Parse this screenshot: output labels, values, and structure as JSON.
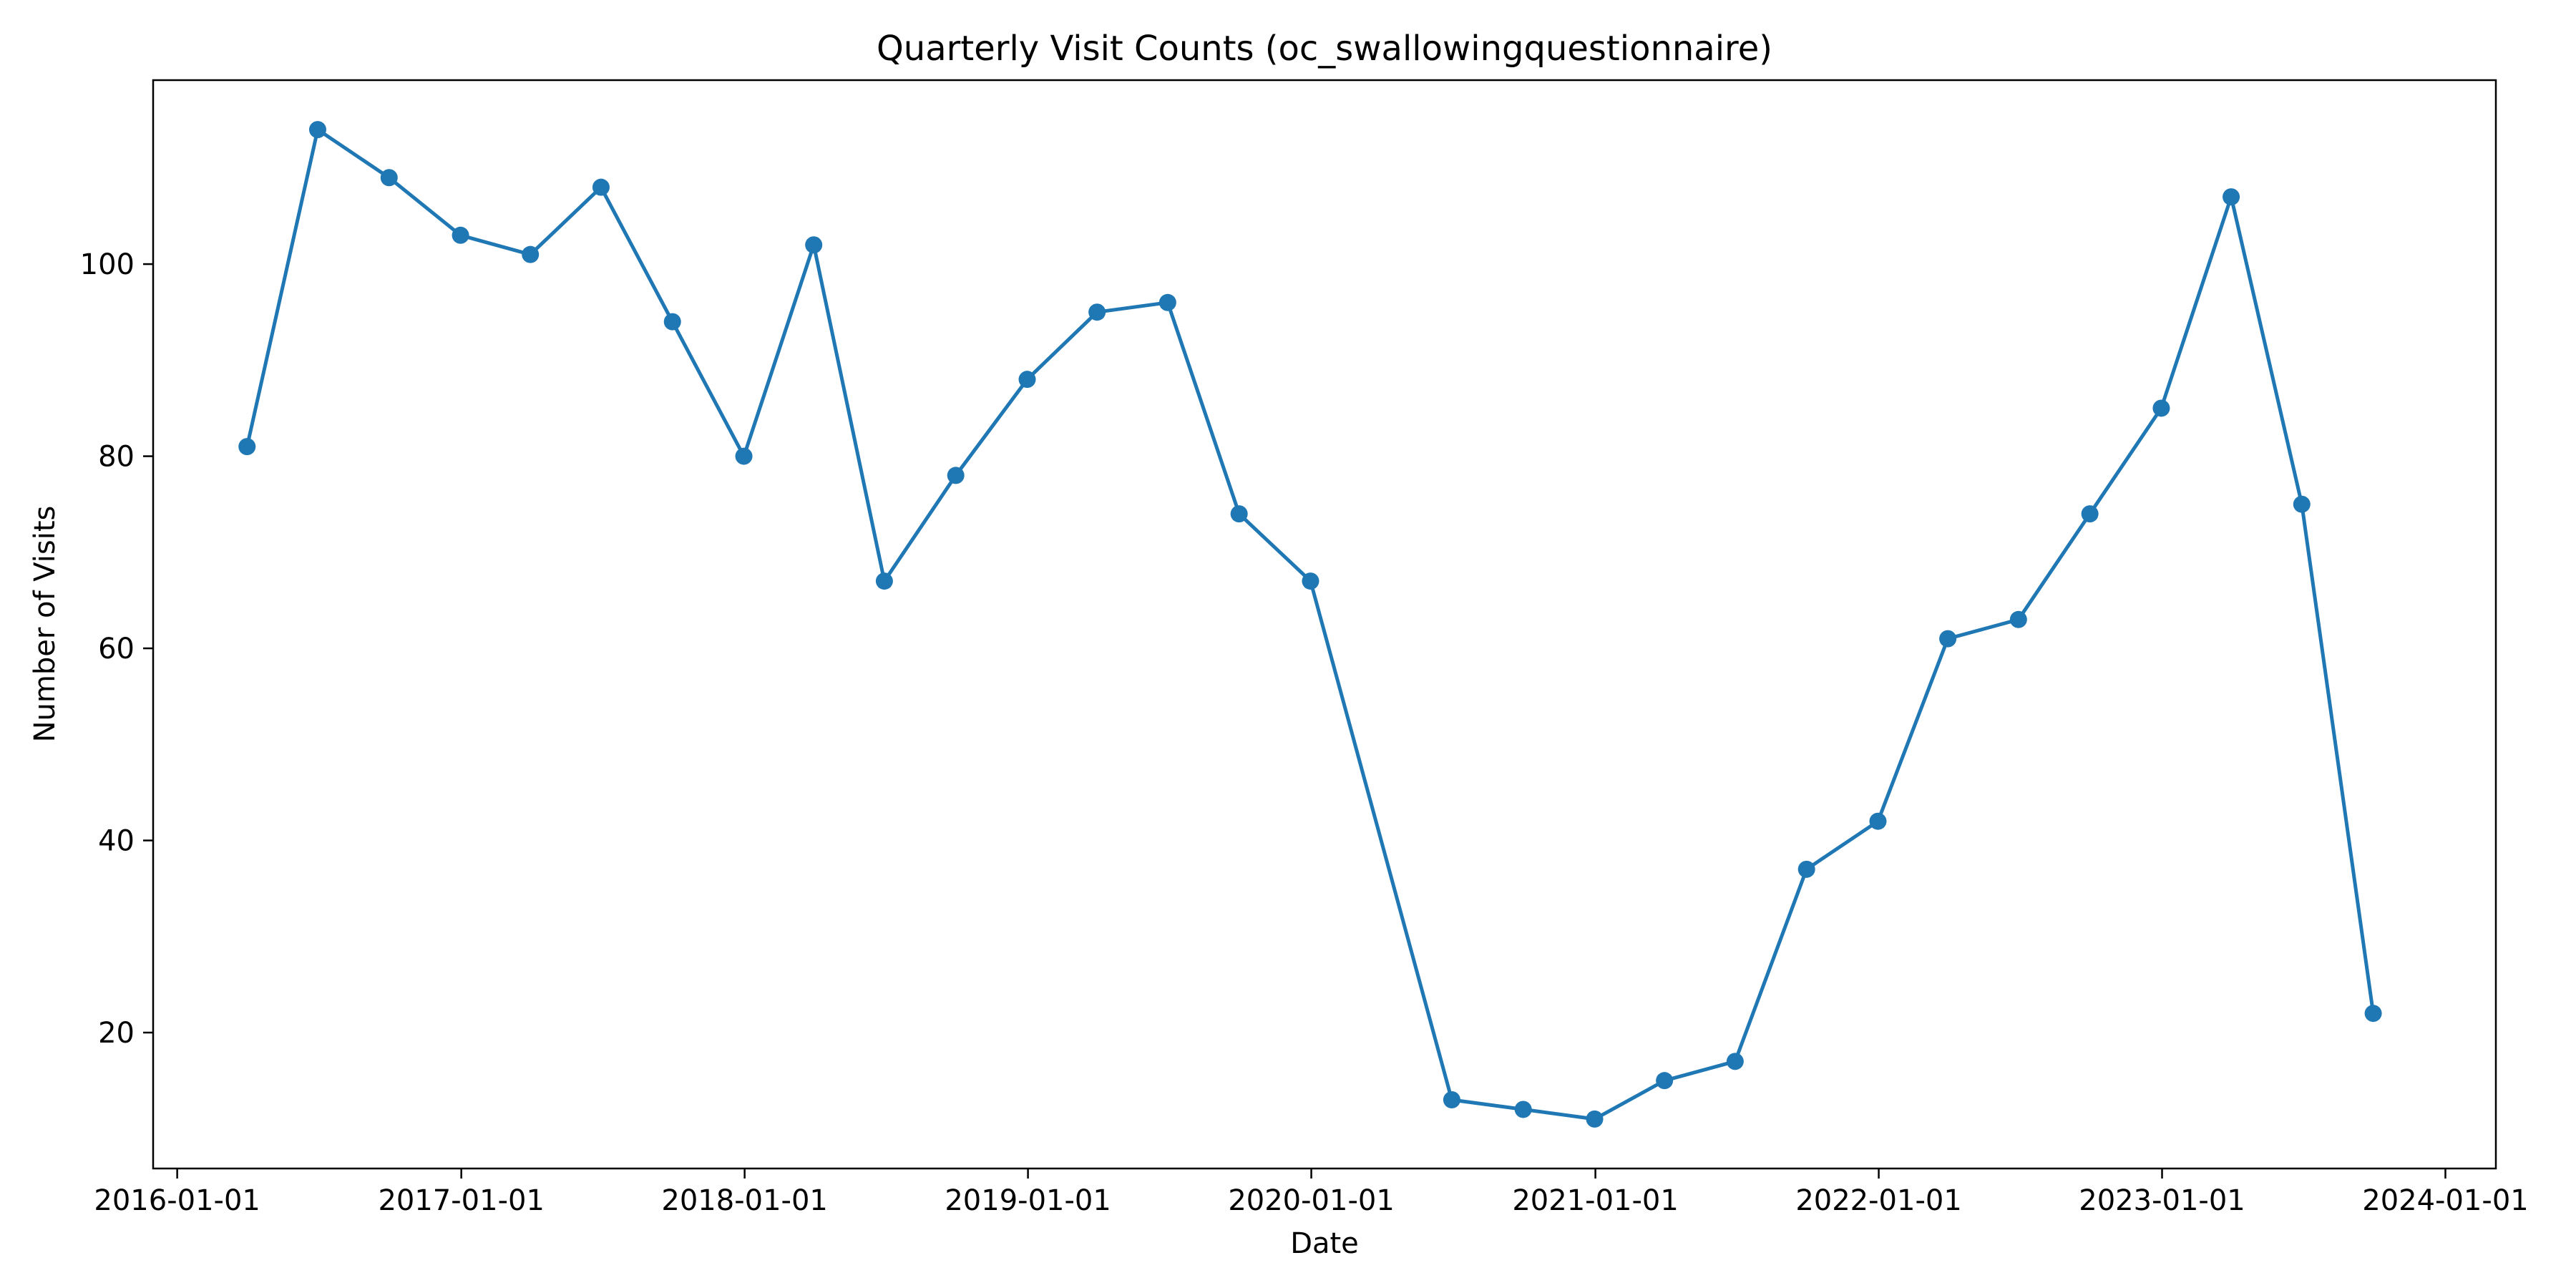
{
  "chart_data": {
    "type": "line",
    "title": "Quarterly Visit Counts (oc_swallowingquestionnaire)",
    "xlabel": "Date",
    "ylabel": "Number of Visits",
    "x_tick_labels": [
      "2016-01-01",
      "2017-01-01",
      "2018-01-01",
      "2019-01-01",
      "2020-01-01",
      "2021-01-01",
      "2022-01-01",
      "2023-01-01",
      "2024-01-01"
    ],
    "y_tick_labels": [
      "20",
      "40",
      "60",
      "80",
      "100"
    ],
    "xlim": [
      "2015-12-01",
      "2024-03-06"
    ],
    "ylim": [
      5.85,
      119.15
    ],
    "grid": false,
    "legend": "none",
    "line_color": "#1f77b4",
    "series": [
      {
        "x": [
          "2016-03-31",
          "2016-06-30",
          "2016-09-30",
          "2016-12-31",
          "2017-03-31",
          "2017-06-30",
          "2017-09-30",
          "2017-12-31",
          "2018-03-31",
          "2018-06-30",
          "2018-09-30",
          "2018-12-31",
          "2019-03-31",
          "2019-06-30",
          "2019-09-30",
          "2019-12-31",
          "2020-06-30",
          "2020-09-30",
          "2020-12-31",
          "2021-03-31",
          "2021-06-30",
          "2021-09-30",
          "2021-12-31",
          "2022-03-31",
          "2022-06-30",
          "2022-09-30",
          "2022-12-31",
          "2023-03-31",
          "2023-06-30",
          "2023-09-30"
        ],
        "values": [
          81,
          114,
          109,
          103,
          101,
          108,
          94,
          80,
          102,
          67,
          78,
          88,
          95,
          96,
          74,
          67,
          13,
          12,
          11,
          15,
          17,
          37,
          42,
          61,
          63,
          74,
          85,
          107,
          75,
          22
        ]
      }
    ]
  }
}
